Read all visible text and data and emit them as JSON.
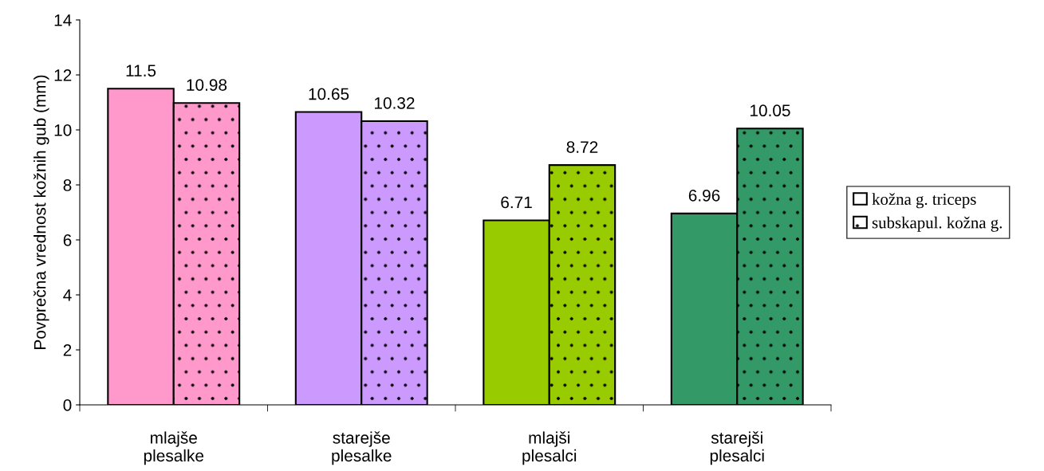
{
  "chart_data": {
    "type": "bar",
    "ylabel": "Povprečna vrednost kožnih gub (mm)",
    "categories": [
      "mlajše\nplesalke",
      "starejše\nplesalke",
      "mlajši\nplesalci",
      "starejši\nplesalci"
    ],
    "series": [
      {
        "name": "kožna g. triceps",
        "color": "#ffffff",
        "colors": [
          "#ff99cc",
          "#cc99ff",
          "#99cc00",
          "#339966"
        ],
        "values": [
          11.5,
          10.65,
          6.71,
          6.96
        ]
      },
      {
        "name": "subskapul. kožna g.",
        "color": "#ffffff",
        "colors": [
          "#ff99cc",
          "#cc99ff",
          "#99cc00",
          "#339966"
        ],
        "values": [
          10.98,
          10.32,
          8.72,
          10.05
        ]
      }
    ],
    "ylim": [
      0,
      14
    ],
    "yticks": [
      0,
      2,
      4,
      6,
      8,
      10,
      12,
      14
    ],
    "grid": false,
    "legend": "right",
    "data_labels": true
  }
}
